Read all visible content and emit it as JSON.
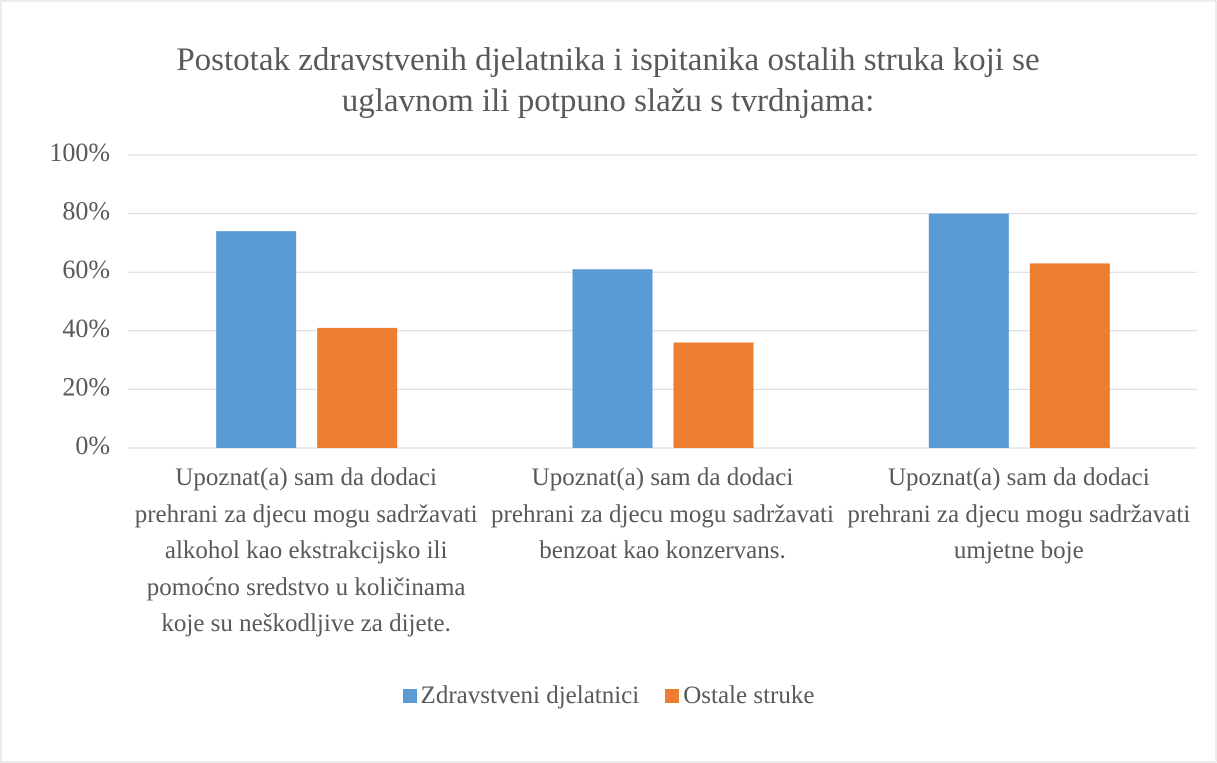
{
  "chart_data": {
    "type": "bar",
    "title": "Postotak zdravstvenih djelatnika i ispitanika ostalih struka koji se uglavnom ili potpuno slažu s tvrdnjama:",
    "categories": [
      "Upoznat(a) sam da dodaci prehrani za djecu mogu sadržavati alkohol kao ekstrakcijsko ili pomoćno sredstvo u količinama koje su neškodljive za dijete.",
      "Upoznat(a) sam da dodaci prehrani za djecu mogu sadržavati benzoat kao konzervans.",
      "Upoznat(a) sam da dodaci prehrani za djecu mogu sadržavati umjetne boje"
    ],
    "series": [
      {
        "name": "Zdravstveni djelatnici",
        "color": "#5b9bd5",
        "values": [
          74,
          61,
          80
        ]
      },
      {
        "name": "Ostale struke",
        "color": "#ed7d31",
        "values": [
          41,
          36,
          63
        ]
      }
    ],
    "ylim": [
      0,
      100
    ],
    "yticks": [
      {
        "value": 0,
        "label": "0%"
      },
      {
        "value": 20,
        "label": "20%"
      },
      {
        "value": 40,
        "label": "40%"
      },
      {
        "value": 60,
        "label": "60%"
      },
      {
        "value": 80,
        "label": "80%"
      },
      {
        "value": 100,
        "label": "100%"
      }
    ],
    "grid": true,
    "legend": "bottom"
  }
}
